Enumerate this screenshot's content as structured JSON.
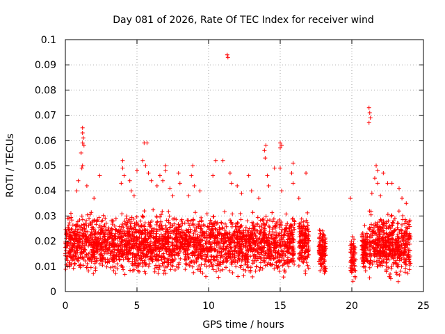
{
  "chart_data": {
    "type": "scatter",
    "title": "Day 081 of 2026, Rate Of TEC Index for receiver wind",
    "xlabel": "GPS time / hours",
    "ylabel": "ROTI / TECUs",
    "xlim": [
      0,
      25
    ],
    "ylim": [
      0,
      0.1
    ],
    "x_ticks": [
      "0",
      "5",
      "10",
      "15",
      "20",
      "25"
    ],
    "y_ticks": [
      "0",
      "0.01",
      "0.02",
      "0.03",
      "0.04",
      "0.05",
      "0.06",
      "0.07",
      "0.08",
      "0.09",
      "0.1"
    ],
    "grid": true,
    "marker": "plus",
    "color": "#ff0000",
    "bands": [
      {
        "x": [
          0.0,
          16.0
        ],
        "y": [
          0.004,
          0.034
        ],
        "density": 2600
      },
      {
        "x": [
          16.3,
          17.0
        ],
        "y": [
          0.005,
          0.034
        ],
        "density": 160
      },
      {
        "x": [
          17.7,
          18.2
        ],
        "y": [
          0.003,
          0.029
        ],
        "density": 120
      },
      {
        "x": [
          19.9,
          20.3
        ],
        "y": [
          0.002,
          0.024
        ],
        "density": 70
      },
      {
        "x": [
          20.7,
          21.1
        ],
        "y": [
          0.005,
          0.028
        ],
        "density": 100
      },
      {
        "x": [
          21.2,
          24.1
        ],
        "y": [
          0.003,
          0.034
        ],
        "density": 520
      }
    ],
    "outliers": [
      {
        "x": 1.2,
        "y": 0.065
      },
      {
        "x": 1.2,
        "y": 0.063
      },
      {
        "x": 1.25,
        "y": 0.061
      },
      {
        "x": 1.2,
        "y": 0.059
      },
      {
        "x": 1.3,
        "y": 0.058
      },
      {
        "x": 1.1,
        "y": 0.055
      },
      {
        "x": 1.2,
        "y": 0.05
      },
      {
        "x": 1.15,
        "y": 0.049
      },
      {
        "x": 0.9,
        "y": 0.044
      },
      {
        "x": 0.8,
        "y": 0.04
      },
      {
        "x": 1.5,
        "y": 0.042
      },
      {
        "x": 2.0,
        "y": 0.037
      },
      {
        "x": 2.4,
        "y": 0.046
      },
      {
        "x": 4.0,
        "y": 0.052
      },
      {
        "x": 4.0,
        "y": 0.049
      },
      {
        "x": 4.1,
        "y": 0.046
      },
      {
        "x": 3.9,
        "y": 0.043
      },
      {
        "x": 4.5,
        "y": 0.044
      },
      {
        "x": 4.6,
        "y": 0.04
      },
      {
        "x": 4.8,
        "y": 0.038
      },
      {
        "x": 5.0,
        "y": 0.048
      },
      {
        "x": 5.5,
        "y": 0.059
      },
      {
        "x": 5.7,
        "y": 0.059
      },
      {
        "x": 5.4,
        "y": 0.052
      },
      {
        "x": 5.6,
        "y": 0.05
      },
      {
        "x": 5.8,
        "y": 0.047
      },
      {
        "x": 6.0,
        "y": 0.044
      },
      {
        "x": 6.4,
        "y": 0.042
      },
      {
        "x": 6.6,
        "y": 0.046
      },
      {
        "x": 6.8,
        "y": 0.044
      },
      {
        "x": 7.0,
        "y": 0.05
      },
      {
        "x": 7.0,
        "y": 0.048
      },
      {
        "x": 7.3,
        "y": 0.041
      },
      {
        "x": 7.5,
        "y": 0.038
      },
      {
        "x": 7.9,
        "y": 0.047
      },
      {
        "x": 8.0,
        "y": 0.043
      },
      {
        "x": 8.6,
        "y": 0.038
      },
      {
        "x": 8.8,
        "y": 0.046
      },
      {
        "x": 8.9,
        "y": 0.05
      },
      {
        "x": 9.0,
        "y": 0.042
      },
      {
        "x": 9.4,
        "y": 0.04
      },
      {
        "x": 10.5,
        "y": 0.052
      },
      {
        "x": 10.3,
        "y": 0.046
      },
      {
        "x": 11.0,
        "y": 0.052
      },
      {
        "x": 11.3,
        "y": 0.094
      },
      {
        "x": 11.35,
        "y": 0.093
      },
      {
        "x": 11.5,
        "y": 0.047
      },
      {
        "x": 11.6,
        "y": 0.043
      },
      {
        "x": 12.0,
        "y": 0.042
      },
      {
        "x": 12.3,
        "y": 0.039
      },
      {
        "x": 12.8,
        "y": 0.046
      },
      {
        "x": 13.0,
        "y": 0.04
      },
      {
        "x": 13.5,
        "y": 0.037
      },
      {
        "x": 13.9,
        "y": 0.056
      },
      {
        "x": 14.0,
        "y": 0.058
      },
      {
        "x": 13.95,
        "y": 0.053
      },
      {
        "x": 14.1,
        "y": 0.046
      },
      {
        "x": 14.2,
        "y": 0.042
      },
      {
        "x": 14.6,
        "y": 0.049
      },
      {
        "x": 15.0,
        "y": 0.059
      },
      {
        "x": 15.0,
        "y": 0.057
      },
      {
        "x": 15.1,
        "y": 0.058
      },
      {
        "x": 15.0,
        "y": 0.049
      },
      {
        "x": 15.1,
        "y": 0.04
      },
      {
        "x": 15.9,
        "y": 0.051
      },
      {
        "x": 15.8,
        "y": 0.047
      },
      {
        "x": 15.9,
        "y": 0.043
      },
      {
        "x": 16.8,
        "y": 0.047
      },
      {
        "x": 16.3,
        "y": 0.037
      },
      {
        "x": 19.9,
        "y": 0.037
      },
      {
        "x": 21.2,
        "y": 0.073
      },
      {
        "x": 21.25,
        "y": 0.071
      },
      {
        "x": 21.3,
        "y": 0.069
      },
      {
        "x": 21.2,
        "y": 0.067
      },
      {
        "x": 21.4,
        "y": 0.039
      },
      {
        "x": 21.7,
        "y": 0.05
      },
      {
        "x": 21.8,
        "y": 0.048
      },
      {
        "x": 21.6,
        "y": 0.045
      },
      {
        "x": 21.8,
        "y": 0.043
      },
      {
        "x": 22.2,
        "y": 0.047
      },
      {
        "x": 22.0,
        "y": 0.038
      },
      {
        "x": 22.5,
        "y": 0.043
      },
      {
        "x": 22.8,
        "y": 0.043
      },
      {
        "x": 23.3,
        "y": 0.041
      },
      {
        "x": 23.5,
        "y": 0.037
      },
      {
        "x": 23.8,
        "y": 0.035
      }
    ]
  }
}
